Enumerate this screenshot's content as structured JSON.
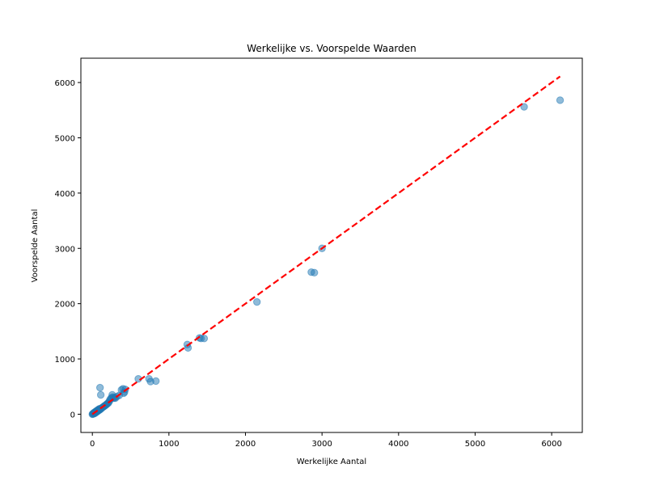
{
  "chart_data": {
    "type": "scatter",
    "title": "Werkelijke vs. Voorspelde Waarden",
    "xlabel": "Werkelijke Aantal",
    "ylabel": "Voorspelde Aantal",
    "xlim": [
      -150,
      6400
    ],
    "ylim": [
      -330,
      6440
    ],
    "xticks": [
      0,
      1000,
      2000,
      3000,
      4000,
      5000,
      6000
    ],
    "yticks": [
      0,
      1000,
      2000,
      3000,
      4000,
      5000,
      6000
    ],
    "grid": false,
    "colors": {
      "points": "#1f77b4",
      "reference_line": "#ff0000"
    },
    "series": [
      {
        "points": [
          [
            0,
            0
          ],
          [
            5,
            3
          ],
          [
            10,
            8
          ],
          [
            15,
            20
          ],
          [
            20,
            10
          ],
          [
            25,
            30
          ],
          [
            30,
            15
          ],
          [
            35,
            40
          ],
          [
            40,
            25
          ],
          [
            45,
            50
          ],
          [
            50,
            35
          ],
          [
            55,
            60
          ],
          [
            60,
            45
          ],
          [
            65,
            70
          ],
          [
            70,
            55
          ],
          [
            75,
            80
          ],
          [
            80,
            65
          ],
          [
            85,
            90
          ],
          [
            90,
            75
          ],
          [
            95,
            100
          ],
          [
            100,
            85
          ],
          [
            110,
            95
          ],
          [
            120,
            110
          ],
          [
            130,
            120
          ],
          [
            140,
            130
          ],
          [
            150,
            140
          ],
          [
            160,
            150
          ],
          [
            170,
            160
          ],
          [
            180,
            170
          ],
          [
            190,
            185
          ],
          [
            200,
            195
          ],
          [
            210,
            205
          ],
          [
            220,
            230
          ],
          [
            230,
            260
          ],
          [
            240,
            280
          ],
          [
            250,
            300
          ],
          [
            260,
            350
          ],
          [
            270,
            310
          ],
          [
            280,
            290
          ],
          [
            290,
            300
          ],
          [
            300,
            290
          ],
          [
            320,
            320
          ],
          [
            350,
            340
          ],
          [
            380,
            440
          ],
          [
            400,
            460
          ],
          [
            410,
            380
          ],
          [
            420,
            400
          ],
          [
            430,
            450
          ],
          [
            100,
            480
          ],
          [
            110,
            350
          ],
          [
            600,
            640
          ],
          [
            740,
            640
          ],
          [
            760,
            590
          ],
          [
            830,
            600
          ],
          [
            1240,
            1260
          ],
          [
            1250,
            1200
          ],
          [
            1400,
            1380
          ],
          [
            1420,
            1370
          ],
          [
            1460,
            1370
          ],
          [
            2150,
            2030
          ],
          [
            2860,
            2570
          ],
          [
            2900,
            2560
          ],
          [
            3000,
            3000
          ],
          [
            5640,
            5560
          ],
          [
            6110,
            5680
          ]
        ]
      }
    ],
    "reference_line": {
      "x": [
        0,
        6110
      ],
      "y": [
        0,
        6110
      ],
      "style": "dashed"
    }
  }
}
